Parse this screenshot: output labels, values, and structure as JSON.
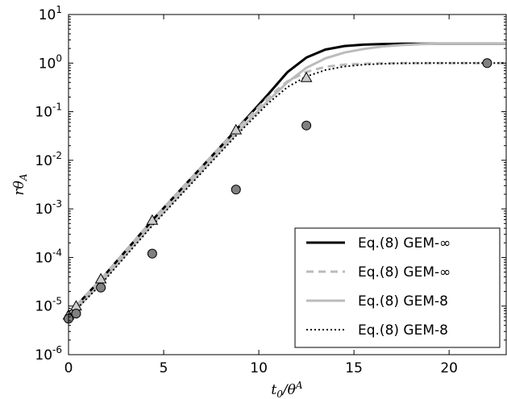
{
  "chart_data": {
    "type": "line",
    "title": "",
    "xlabel": {
      "base": "t",
      "sub": "0",
      "slash": "/",
      "base2": "θ",
      "sup": "A"
    },
    "ylabel": {
      "base": "rθ",
      "sub": "A"
    },
    "xlim": [
      0,
      23
    ],
    "ylim": [
      1e-06,
      10
    ],
    "yscale": "log",
    "grid": false,
    "legend_position": "lower-right",
    "x_ticks": [
      {
        "value": 0,
        "label": "0"
      },
      {
        "value": 5,
        "label": "5"
      },
      {
        "value": 10,
        "label": "10"
      },
      {
        "value": 15,
        "label": "15"
      },
      {
        "value": 20,
        "label": "20"
      }
    ],
    "y_ticks": [
      {
        "value": 1e-06,
        "base": "10",
        "exp": "-6"
      },
      {
        "value": 1e-05,
        "base": "10",
        "exp": "-5"
      },
      {
        "value": 0.0001,
        "base": "10",
        "exp": "-4"
      },
      {
        "value": 0.001,
        "base": "10",
        "exp": "-3"
      },
      {
        "value": 0.01,
        "base": "10",
        "exp": "-2"
      },
      {
        "value": 0.1,
        "base": "10",
        "exp": "-1"
      },
      {
        "value": 1,
        "base": "10",
        "exp": "0"
      },
      {
        "value": 10,
        "base": "10",
        "exp": "1"
      }
    ],
    "series": [
      {
        "name": "Eq.(8) GEM-∞",
        "style": "solid",
        "color": "#000000",
        "width": 3,
        "x": [
          0,
          0.4,
          1.7,
          4.4,
          8.8,
          10.5,
          11.5,
          12.5,
          13.5,
          14.5,
          15.5,
          16.5,
          17.5,
          19,
          23
        ],
        "y": [
          7e-06,
          1e-05,
          3.5e-05,
          0.00058,
          0.042,
          0.23,
          0.65,
          1.3,
          1.9,
          2.25,
          2.4,
          2.47,
          2.5,
          2.5,
          2.5
        ]
      },
      {
        "name": "Eq.(8) GEM-∞",
        "style": "dashed",
        "color": "#bbbbbb",
        "width": 3,
        "x": [
          0,
          0.4,
          1.7,
          4.4,
          8.8,
          10.5,
          11.5,
          12.5,
          13.5,
          14.5,
          15.5,
          16.5,
          17.5,
          19,
          23
        ],
        "y": [
          7e-06,
          1e-05,
          3.5e-05,
          0.00058,
          0.042,
          0.2,
          0.42,
          0.66,
          0.84,
          0.93,
          0.97,
          0.99,
          1.0,
          1.0,
          1.0
        ]
      },
      {
        "name": "Eq.(8) GEM-8",
        "style": "solid",
        "color": "#bbbbbb",
        "width": 3,
        "x": [
          0,
          0.4,
          1.7,
          4.4,
          8.8,
          10.5,
          11.5,
          12.5,
          13.5,
          14.5,
          15.5,
          16.5,
          17.5,
          18.5,
          19.5,
          23
        ],
        "y": [
          6e-06,
          8.5e-06,
          3e-05,
          0.00048,
          0.035,
          0.17,
          0.4,
          0.8,
          1.25,
          1.65,
          1.95,
          2.2,
          2.35,
          2.45,
          2.5,
          2.5
        ]
      },
      {
        "name": "Eq.(8) GEM-8",
        "style": "dotted",
        "color": "#000000",
        "width": 2,
        "x": [
          0,
          0.4,
          1.7,
          4.4,
          8.8,
          10.5,
          11.5,
          12.5,
          13.5,
          14.5,
          15.5,
          16.5,
          17.5,
          19,
          23
        ],
        "y": [
          6e-06,
          8.5e-06,
          2.8e-05,
          0.00045,
          0.032,
          0.15,
          0.32,
          0.53,
          0.72,
          0.85,
          0.93,
          0.97,
          0.99,
          1.0,
          1.0
        ]
      }
    ],
    "markers": [
      {
        "shape": "triangle",
        "fill": "#cccccc",
        "stroke": "#000000",
        "points": [
          [
            0,
            6.5e-06
          ],
          [
            0.4,
            1e-05
          ],
          [
            1.7,
            3.6e-05
          ],
          [
            4.4,
            0.00058
          ],
          [
            8.8,
            0.042
          ],
          [
            12.5,
            0.5
          ]
        ]
      },
      {
        "shape": "circle",
        "fill": "#808080",
        "stroke": "#000000",
        "points": [
          [
            0,
            5.5e-06
          ],
          [
            0.4,
            7e-06
          ],
          [
            1.7,
            2.4e-05
          ],
          [
            4.4,
            0.00012
          ],
          [
            8.8,
            0.0025
          ],
          [
            12.5,
            0.052
          ],
          [
            22,
            1.0
          ]
        ]
      }
    ]
  }
}
